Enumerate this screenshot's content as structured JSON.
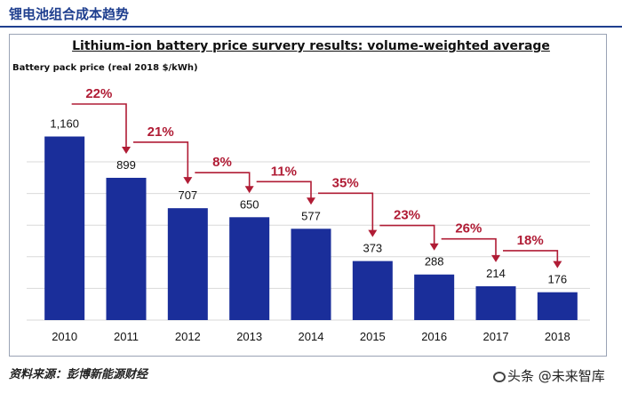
{
  "header": {
    "title": "锂电池组合成本趋势"
  },
  "chart_data": {
    "type": "bar",
    "title": "Lithium-ion battery price survery results: volume-weighted average",
    "ylabel": "Battery pack price (real 2018 $/kWh)",
    "xlabel": "",
    "categories": [
      "2010",
      "2011",
      "2012",
      "2013",
      "2014",
      "2015",
      "2016",
      "2017",
      "2018"
    ],
    "values": [
      1160,
      899,
      707,
      650,
      577,
      373,
      288,
      214,
      176
    ],
    "value_labels": [
      "1,160",
      "899",
      "707",
      "650",
      "577",
      "373",
      "288",
      "214",
      "176"
    ],
    "annotations": [
      "22%",
      "21%",
      "8%",
      "11%",
      "35%",
      "23%",
      "26%",
      "18%"
    ],
    "ylim": [
      0,
      1400
    ],
    "grid": true,
    "colors": {
      "bar": "#1a2e9a",
      "annotation": "#b01c35",
      "grid": "#d9d9d9"
    }
  },
  "footer": {
    "source": "资料来源：彭博新能源财经"
  },
  "watermark": {
    "text": "头条 @未来智库"
  }
}
